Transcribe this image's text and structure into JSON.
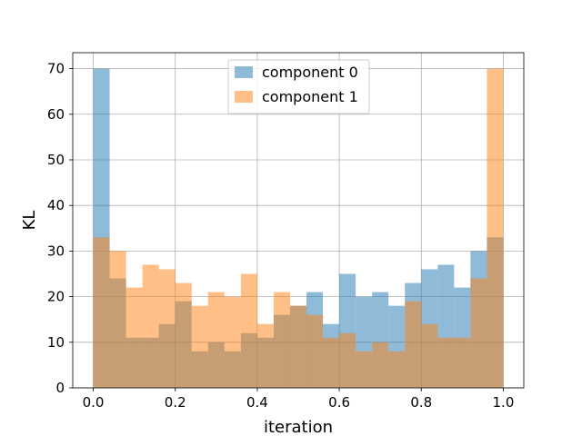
{
  "chart_data": {
    "type": "bar",
    "subtype": "histogram",
    "title": "",
    "xlabel": "iteration",
    "ylabel": "KL",
    "xlim": [
      -0.05,
      1.05
    ],
    "ylim": [
      0,
      73.5
    ],
    "xticks": [
      "0.0",
      "0.2",
      "0.4",
      "0.6",
      "0.8",
      "1.0"
    ],
    "xtick_values": [
      0.0,
      0.2,
      0.4,
      0.6,
      0.8,
      1.0
    ],
    "yticks": [
      "0",
      "10",
      "20",
      "30",
      "40",
      "50",
      "60",
      "70"
    ],
    "ytick_values": [
      0,
      10,
      20,
      30,
      40,
      50,
      60,
      70
    ],
    "grid": true,
    "legend_position": "top-center",
    "bin_start": 0.0,
    "bin_width": 0.04,
    "series": [
      {
        "name": "component 0",
        "color": "#1f77b4",
        "alpha": 0.5,
        "values": [
          70,
          24,
          11,
          11,
          14,
          19,
          8,
          10,
          8,
          12,
          11,
          16,
          18,
          21,
          14,
          25,
          20,
          21,
          18,
          23,
          26,
          27,
          22,
          30,
          33
        ]
      },
      {
        "name": "component 1",
        "color": "#ff7f0e",
        "alpha": 0.5,
        "values": [
          33,
          30,
          22,
          27,
          26,
          23,
          18,
          21,
          20,
          25,
          14,
          21,
          18,
          16,
          11,
          12,
          8,
          10,
          8,
          19,
          14,
          11,
          11,
          24,
          70
        ]
      }
    ]
  }
}
